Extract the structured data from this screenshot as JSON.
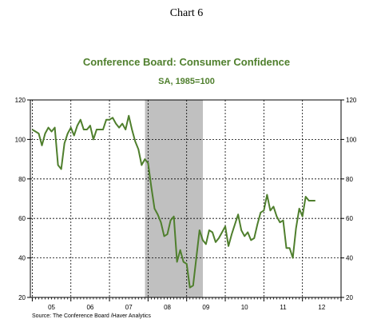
{
  "header": {
    "chart_number": "Chart 6"
  },
  "chart_data": {
    "type": "line",
    "title": "Conference Board: Consumer Confidence",
    "subtitle": "SA, 1985=100",
    "xlabel": "",
    "ylabel": "",
    "x_tick_labels": [
      "05",
      "06",
      "07",
      "08",
      "09",
      "10",
      "11",
      "12"
    ],
    "y_ticks": [
      20,
      40,
      60,
      80,
      100,
      120
    ],
    "ylim": [
      20,
      120
    ],
    "xlim": [
      2004.95,
      2013.0
    ],
    "grid": true,
    "recession_shading": {
      "start": 2007.92,
      "end": 2009.42
    },
    "series": [
      {
        "color": "#4f7f2d",
        "x": [
          2005.0,
          2005.083,
          2005.167,
          2005.25,
          2005.333,
          2005.417,
          2005.5,
          2005.583,
          2005.667,
          2005.75,
          2005.833,
          2005.917,
          2006.0,
          2006.083,
          2006.167,
          2006.25,
          2006.333,
          2006.417,
          2006.5,
          2006.583,
          2006.667,
          2006.75,
          2006.833,
          2006.917,
          2007.0,
          2007.083,
          2007.167,
          2007.25,
          2007.333,
          2007.417,
          2007.5,
          2007.583,
          2007.667,
          2007.75,
          2007.833,
          2007.917,
          2008.0,
          2008.083,
          2008.167,
          2008.25,
          2008.333,
          2008.417,
          2008.5,
          2008.583,
          2008.667,
          2008.75,
          2008.833,
          2008.917,
          2009.0,
          2009.083,
          2009.167,
          2009.25,
          2009.333,
          2009.417,
          2009.5,
          2009.583,
          2009.667,
          2009.75,
          2009.833,
          2009.917,
          2010.0,
          2010.083,
          2010.167,
          2010.25,
          2010.333,
          2010.417,
          2010.5,
          2010.583,
          2010.667,
          2010.75,
          2010.833,
          2010.917,
          2011.0,
          2011.083,
          2011.167,
          2011.25,
          2011.333,
          2011.417,
          2011.5,
          2011.583,
          2011.667,
          2011.75,
          2011.833,
          2011.917,
          2012.0,
          2012.083,
          2012.167,
          2012.25,
          2012.333
        ],
        "values": [
          105,
          104,
          103,
          97,
          103,
          106,
          104,
          106,
          87,
          85,
          98,
          103,
          106,
          102,
          107,
          110,
          105,
          105,
          107,
          100,
          105,
          105,
          105,
          110,
          110,
          111,
          108,
          106,
          108,
          105,
          112,
          105,
          99,
          95,
          87,
          90,
          88,
          76,
          65,
          62,
          58,
          51,
          52,
          59,
          61,
          38,
          44,
          38,
          37,
          25,
          26,
          40,
          54,
          49,
          47,
          54,
          53,
          48,
          50,
          53,
          56,
          46,
          52,
          57,
          62,
          54,
          51,
          53,
          49,
          50,
          57,
          63,
          64,
          72,
          64,
          66,
          61,
          58,
          59,
          45,
          45,
          40,
          55,
          65,
          61,
          71,
          69,
          69,
          69
        ]
      }
    ]
  },
  "footer": {
    "source": "Source:  The Conference Board /Haver Analytics"
  }
}
